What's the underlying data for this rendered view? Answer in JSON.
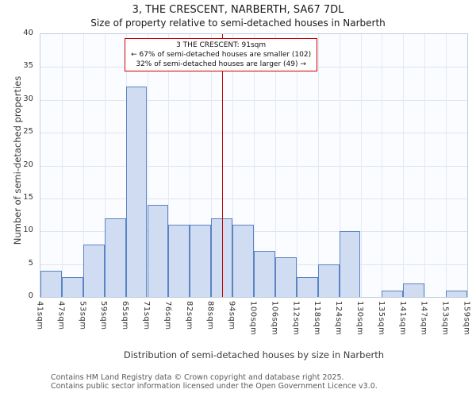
{
  "title": "3, THE CRESCENT, NARBERTH, SA67 7DL",
  "subtitle": "Size of property relative to semi-detached houses in Narberth",
  "annotation": {
    "line1": "3 THE CRESCENT: 91sqm",
    "line2": "← 67% of semi-detached houses are smaller (102)",
    "line3": "32% of semi-detached houses are larger (49) →"
  },
  "chart_data": {
    "type": "bar",
    "title": "Size of property relative to semi-detached houses in Narberth",
    "xlabel": "Distribution of semi-detached houses by size in Narberth",
    "ylabel": "Number of semi-detached properties",
    "bin_labels": [
      "41sqm",
      "47sqm",
      "53sqm",
      "59sqm",
      "65sqm",
      "71sqm",
      "76sqm",
      "82sqm",
      "88sqm",
      "94sqm",
      "100sqm",
      "106sqm",
      "112sqm",
      "118sqm",
      "124sqm",
      "130sqm",
      "135sqm",
      "141sqm",
      "147sqm",
      "153sqm",
      "159sqm"
    ],
    "values": [
      4,
      3,
      8,
      12,
      32,
      14,
      11,
      11,
      12,
      11,
      7,
      6,
      3,
      5,
      10,
      0,
      1,
      2,
      0,
      1
    ],
    "ylim": [
      0,
      40
    ],
    "yticks": [
      0,
      5,
      10,
      15,
      20,
      25,
      30,
      35,
      40
    ],
    "grid": true,
    "legend": "none",
    "marker_value": 91,
    "marker_color": "#bb0000",
    "bar_fill": "#cfdcf1",
    "bar_border": "#5b84c4"
  },
  "footer": {
    "line1": "Contains HM Land Registry data © Crown copyright and database right 2025.",
    "line2": "Contains public sector information licensed under the Open Government Licence v3.0."
  }
}
